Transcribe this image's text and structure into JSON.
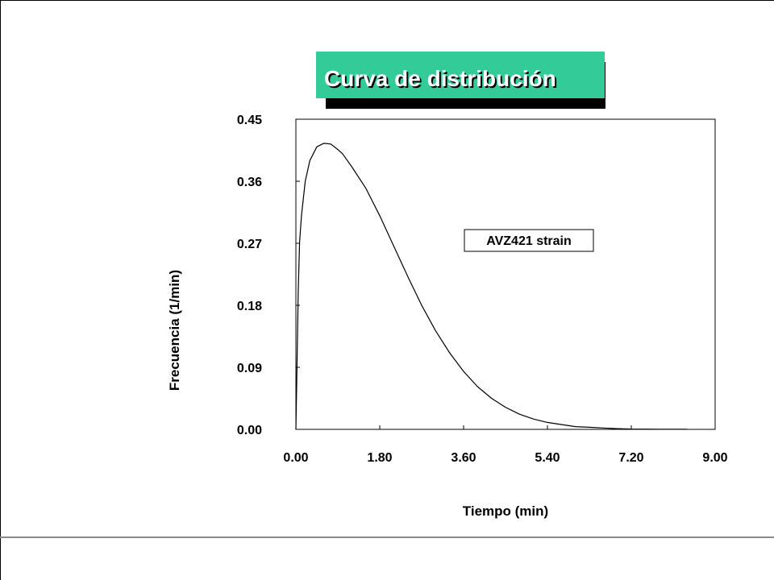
{
  "title": "Curva de distribución",
  "chart_data": {
    "type": "line",
    "xlabel": "Tiempo (min)",
    "ylabel": "Frecuencia (1/min)",
    "xlim": [
      0,
      9
    ],
    "ylim": [
      0,
      0.45
    ],
    "x_ticks": [
      "0.00",
      "1.80",
      "3.60",
      "5.40",
      "7.20",
      "9.00"
    ],
    "y_ticks": [
      "0.00",
      "0.09",
      "0.18",
      "0.27",
      "0.36",
      "0.45"
    ],
    "grid": false,
    "annotations": [
      "AVZ421 strain"
    ],
    "series": [
      {
        "name": "AVZ421 strain",
        "color": "#000000",
        "x": [
          0.0,
          0.02,
          0.05,
          0.08,
          0.12,
          0.2,
          0.3,
          0.45,
          0.6,
          0.75,
          0.9,
          1.0,
          1.2,
          1.5,
          1.8,
          2.1,
          2.4,
          2.7,
          3.0,
          3.3,
          3.6,
          3.9,
          4.2,
          4.5,
          4.8,
          5.1,
          5.4,
          5.7,
          6.0,
          6.3,
          6.6,
          6.9,
          7.2,
          7.5,
          7.8,
          8.1,
          8.4
        ],
        "values": [
          0.0,
          0.08,
          0.2,
          0.272,
          0.31,
          0.36,
          0.39,
          0.41,
          0.415,
          0.414,
          0.406,
          0.4,
          0.381,
          0.35,
          0.31,
          0.266,
          0.222,
          0.18,
          0.143,
          0.111,
          0.084,
          0.062,
          0.045,
          0.032,
          0.022,
          0.015,
          0.01,
          0.007,
          0.004,
          0.003,
          0.002,
          0.001,
          0.0005,
          0.0003,
          0.0002,
          0.0001,
          0.0001
        ]
      }
    ]
  }
}
